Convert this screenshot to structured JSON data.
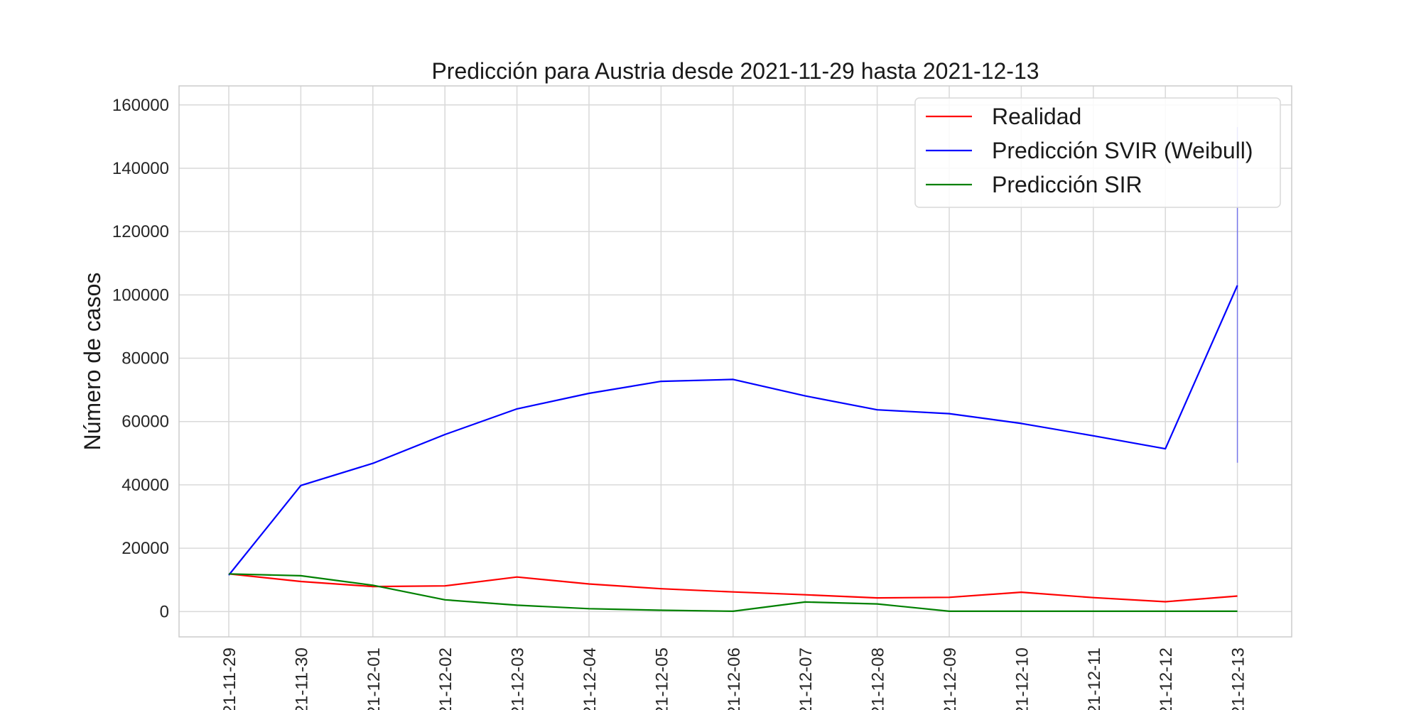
{
  "chart_data": {
    "type": "line",
    "title": "Predicción para Austria desde 2021-11-29 hasta 2021-12-13",
    "xlabel": "",
    "ylabel": "Número de casos",
    "x": [
      "2021-11-29",
      "2021-11-30",
      "2021-12-01",
      "2021-12-02",
      "2021-12-03",
      "2021-12-04",
      "2021-12-05",
      "2021-12-06",
      "2021-12-07",
      "2021-12-08",
      "2021-12-09",
      "2021-12-10",
      "2021-12-11",
      "2021-12-12",
      "2021-12-13"
    ],
    "x_tick_labels": [
      "21-11-29",
      "21-11-30",
      "21-12-01",
      "21-12-02",
      "21-12-03",
      "21-12-04",
      "21-12-05",
      "21-12-06",
      "21-12-07",
      "21-12-08",
      "21-12-09",
      "21-12-10",
      "21-12-11",
      "21-12-12",
      "21-12-13"
    ],
    "ylim": [
      -8000,
      166000
    ],
    "yticks": [
      0,
      20000,
      40000,
      60000,
      80000,
      100000,
      120000,
      140000,
      160000
    ],
    "grid": true,
    "legend_position": "top-right",
    "series": [
      {
        "name": "Realidad",
        "color": "#ff0000",
        "values": [
          11900,
          9500,
          7900,
          8100,
          10900,
          8700,
          7200,
          6200,
          5300,
          4300,
          4500,
          6100,
          4400,
          3100,
          4900
        ]
      },
      {
        "name": "Predicción SVIR (Weibull)",
        "color": "#0000ff",
        "values": [
          11500,
          39800,
          46800,
          55900,
          64000,
          68900,
          72700,
          73300,
          68100,
          63700,
          62500,
          59400,
          55500,
          51400,
          103000
        ]
      },
      {
        "name": "Predicción SIR",
        "color": "#008000",
        "values": [
          11900,
          11300,
          8300,
          3700,
          2000,
          900,
          400,
          100,
          3000,
          2400,
          100,
          100,
          100,
          100,
          100
        ]
      }
    ],
    "error_bar": {
      "x": "2021-12-13",
      "low": 47000,
      "high": 153000,
      "color": "#0000ff"
    }
  }
}
